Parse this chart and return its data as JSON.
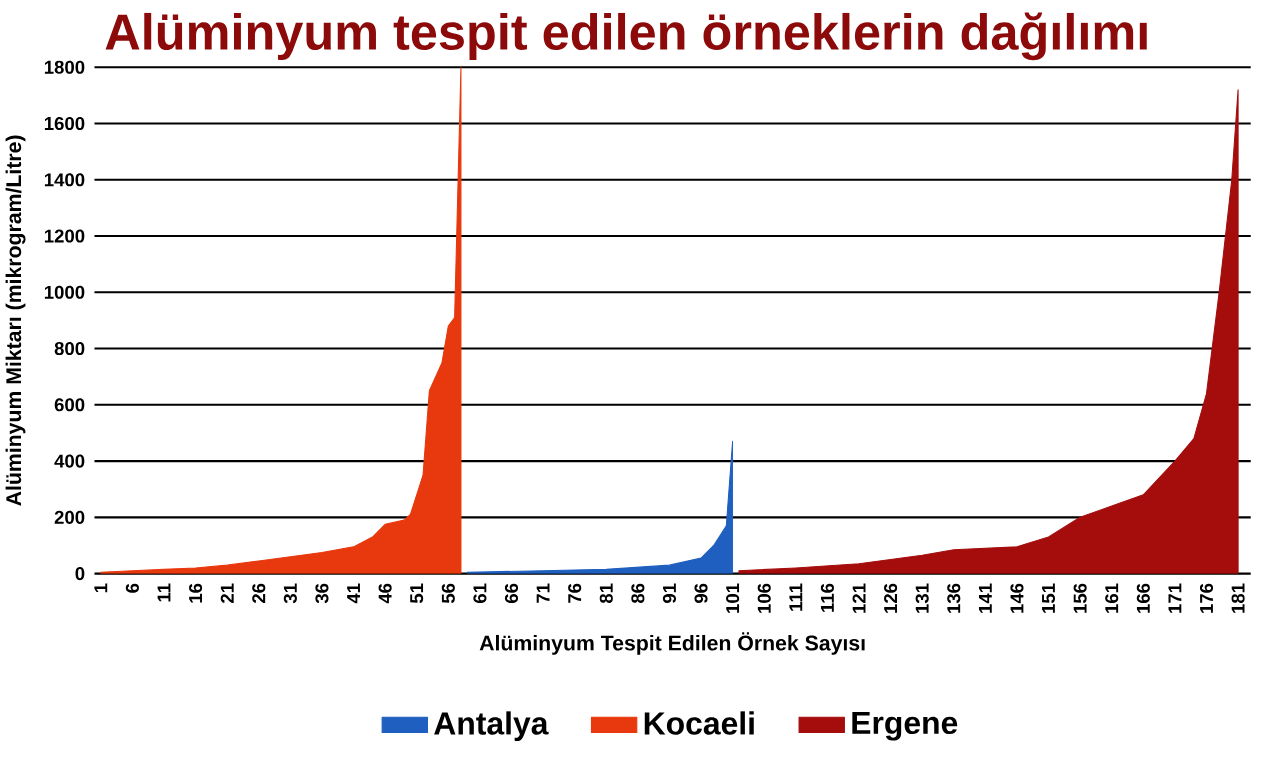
{
  "chart_data": {
    "type": "area",
    "title": "Alüminyum tespit edilen örneklerin dağılımı",
    "xlabel": "Alüminyum Tespit Edilen Örnek Sayısı",
    "ylabel": "Alüminyum Miktarı (mikrogram/Litre)",
    "series": [
      {
        "name": "Antalya",
        "color": "#1f5fbf",
        "x": [
          59,
          71,
          81,
          91,
          96,
          98,
          100,
          101
        ],
        "values": [
          5,
          10,
          15,
          30,
          55,
          100,
          170,
          470
        ]
      },
      {
        "name": "Kocaeli",
        "color": "#e8380d",
        "x": [
          1,
          6,
          11,
          16,
          21,
          26,
          31,
          36,
          41,
          44,
          46,
          49,
          50,
          52,
          53,
          55,
          56,
          57,
          58
        ],
        "values": [
          5,
          10,
          15,
          20,
          30,
          45,
          60,
          75,
          95,
          130,
          175,
          190,
          210,
          350,
          650,
          750,
          880,
          910,
          1800
        ]
      },
      {
        "name": "Ergene",
        "color": "#a50d0d",
        "x": [
          102,
          111,
          121,
          126,
          131,
          136,
          146,
          151,
          156,
          161,
          166,
          171,
          174,
          176,
          178,
          180,
          181
        ],
        "values": [
          10,
          20,
          35,
          50,
          65,
          85,
          95,
          130,
          200,
          240,
          280,
          400,
          480,
          640,
          1000,
          1400,
          1720
        ]
      }
    ],
    "xlim": [
      0,
      183
    ],
    "ylim": [
      0,
      1800
    ],
    "xticks": [
      1,
      6,
      11,
      16,
      21,
      26,
      31,
      36,
      41,
      46,
      51,
      56,
      61,
      66,
      71,
      76,
      81,
      86,
      91,
      96,
      101,
      106,
      111,
      116,
      121,
      126,
      131,
      136,
      141,
      146,
      151,
      156,
      161,
      166,
      171,
      176,
      181
    ],
    "yticks": [
      0,
      200,
      400,
      600,
      800,
      1000,
      1200,
      1400,
      1600,
      1800
    ],
    "grid": "y",
    "legend": "bottom"
  }
}
